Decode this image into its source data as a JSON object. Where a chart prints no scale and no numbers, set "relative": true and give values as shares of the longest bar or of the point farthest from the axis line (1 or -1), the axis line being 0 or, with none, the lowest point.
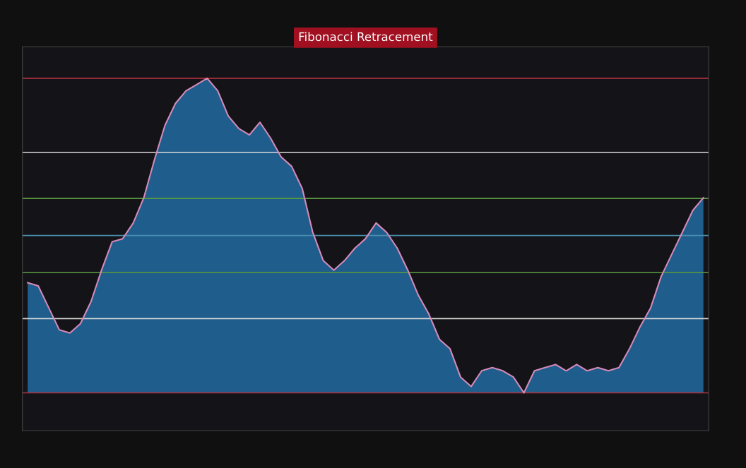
{
  "chart_data": {
    "type": "area",
    "title": "Fibonacci Retracement",
    "relative": true,
    "legend": false,
    "grid": false,
    "categories": [
      null,
      null,
      null,
      null,
      null,
      null,
      null,
      null,
      null,
      null,
      null,
      null,
      null,
      null,
      null,
      null,
      null,
      null,
      null,
      null,
      null,
      null,
      null,
      null,
      null,
      null,
      null,
      null,
      null,
      null,
      null,
      null,
      null,
      null,
      null,
      null,
      null,
      null,
      null,
      null,
      null,
      null,
      null,
      null,
      null,
      null,
      null,
      null,
      null,
      null,
      null,
      null,
      null,
      null,
      null,
      null,
      null,
      null,
      null,
      null,
      null,
      null,
      null,
      null,
      null
    ],
    "series": [
      {
        "color": "#1f5d8c",
        "values": [
          0.35,
          0.34,
          0.27,
          0.2,
          0.19,
          0.22,
          0.29,
          0.39,
          0.48,
          0.49,
          0.54,
          0.62,
          0.74,
          0.85,
          0.92,
          0.96,
          0.98,
          1,
          0.96,
          0.88,
          0.84,
          0.82,
          0.86,
          0.81,
          0.75,
          0.72,
          0.65,
          0.51,
          0.42,
          0.39,
          0.42,
          0.46,
          0.49,
          0.54,
          0.51,
          0.46,
          0.39,
          0.31,
          0.25,
          0.17,
          0.14,
          0.05,
          0.02,
          0.07,
          0.08,
          0.07,
          0.05,
          0,
          0.07,
          0.08,
          0.09,
          0.07,
          0.09,
          0.07,
          0.08,
          0.07,
          0.08,
          0.14,
          0.21,
          0.27,
          0.37,
          0.44,
          0.51,
          0.58,
          0.62
        ]
      }
    ],
    "ref_lines": [
      {
        "axis": "y",
        "value": 1,
        "color": "#b03040"
      },
      {
        "axis": "y",
        "value": 0.764,
        "color": "#d8d8d8"
      },
      {
        "axis": "y",
        "value": 0.618,
        "color": "#5a9a40"
      },
      {
        "axis": "y",
        "value": 0.5,
        "color": "#4a90b0"
      },
      {
        "axis": "y",
        "value": 0.382,
        "color": "#5a9a40"
      },
      {
        "axis": "y",
        "value": 0.236,
        "color": "#d8d8d8"
      },
      {
        "axis": "y",
        "value": 0,
        "color": "#b03040"
      }
    ]
  }
}
